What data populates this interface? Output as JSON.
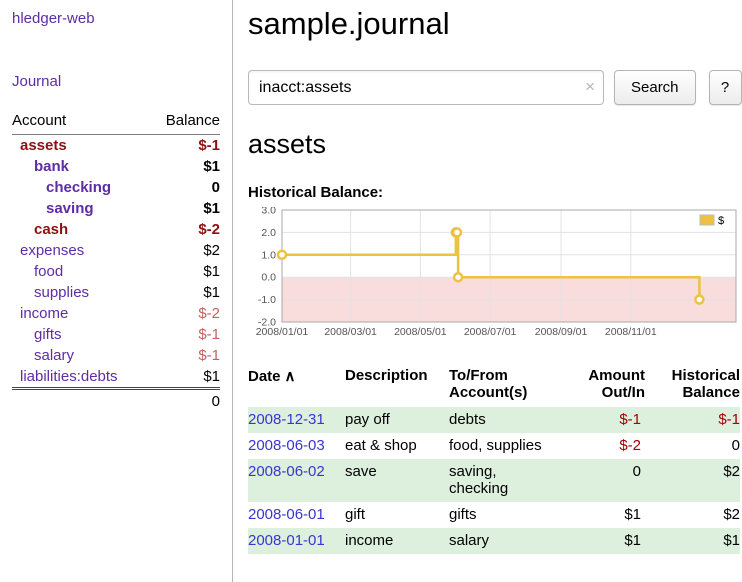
{
  "app": {
    "title": "hledger-web",
    "journal_link": "Journal"
  },
  "sidebar": {
    "header": {
      "account": "Account",
      "balance": "Balance"
    },
    "accounts": [
      {
        "name": "assets",
        "balance": "$-1",
        "indent": 0,
        "bold": true,
        "negative": true
      },
      {
        "name": "bank",
        "balance": "$1",
        "indent": 1,
        "bold": true,
        "negative": false
      },
      {
        "name": "checking",
        "balance": "0",
        "indent": 2,
        "bold": true,
        "negative": false
      },
      {
        "name": "saving",
        "balance": "$1",
        "indent": 2,
        "bold": true,
        "negative": false
      },
      {
        "name": "cash",
        "balance": "$-2",
        "indent": 1,
        "bold": true,
        "negative": true
      },
      {
        "name": "expenses",
        "balance": "$2",
        "indent": 0,
        "bold": false,
        "negative": false
      },
      {
        "name": "food",
        "balance": "$1",
        "indent": 1,
        "bold": false,
        "negative": false
      },
      {
        "name": "supplies",
        "balance": "$1",
        "indent": 1,
        "bold": false,
        "negative": false
      },
      {
        "name": "income",
        "balance": "$-2",
        "indent": 0,
        "bold": false,
        "negative": true
      },
      {
        "name": "gifts",
        "balance": "$-1",
        "indent": 1,
        "bold": false,
        "negative": true
      },
      {
        "name": "salary",
        "balance": "$-1",
        "indent": 1,
        "bold": false,
        "negative": true
      },
      {
        "name": "liabilities:debts",
        "balance": "$1",
        "indent": 0,
        "bold": false,
        "negative": false
      }
    ],
    "total": "0"
  },
  "main": {
    "title": "sample.journal",
    "search": {
      "value": "inacct:assets",
      "clear_icon": "×",
      "button_label": "Search",
      "help_label": "?"
    },
    "account_title": "assets",
    "register": {
      "headers": {
        "date": "Date",
        "sort_icon": "∧",
        "description": "Description",
        "accounts": "To/From Account(s)",
        "amount": "Amount Out/In",
        "balance": "Historical Balance"
      },
      "rows": [
        {
          "date": "2008-12-31",
          "description": "pay off",
          "accounts": "debts",
          "amount": "$-1",
          "amount_negative": true,
          "balance": "$-1",
          "balance_negative": true
        },
        {
          "date": "2008-06-03",
          "description": "eat & shop",
          "accounts": "food, supplies",
          "amount": "$-2",
          "amount_negative": true,
          "balance": "0",
          "balance_negative": false
        },
        {
          "date": "2008-06-02",
          "description": "save",
          "accounts": "saving, checking",
          "amount": "0",
          "amount_negative": false,
          "balance": "$2",
          "balance_negative": false
        },
        {
          "date": "2008-06-01",
          "description": "gift",
          "accounts": "gifts",
          "amount": "$1",
          "amount_negative": false,
          "balance": "$2",
          "balance_negative": false
        },
        {
          "date": "2008-01-01",
          "description": "income",
          "accounts": "salary",
          "amount": "$1",
          "amount_negative": false,
          "balance": "$1",
          "balance_negative": false
        }
      ]
    }
  },
  "chart_data": {
    "type": "line",
    "title": "Historical Balance:",
    "x_type": "date",
    "xlim": [
      "2008-01-01",
      "2009-02-01"
    ],
    "ylim": [
      -2,
      3
    ],
    "yticks": [
      3,
      2,
      1,
      0,
      -1,
      -2
    ],
    "xticks": [
      {
        "date": "2008-01-01",
        "label": "2008/01/01"
      },
      {
        "date": "2008-03-01",
        "label": "2008/03/01"
      },
      {
        "date": "2008-05-01",
        "label": "2008/05/01"
      },
      {
        "date": "2008-07-01",
        "label": "2008/07/01"
      },
      {
        "date": "2008-09-01",
        "label": "2008/09/01"
      },
      {
        "date": "2008-11-01",
        "label": "2008/11/01"
      }
    ],
    "legend_position": "top-right",
    "series": [
      {
        "name": "$",
        "color": "#edc240",
        "steps": true,
        "points": [
          [
            "2008-01-01",
            1
          ],
          [
            "2008-06-01",
            2
          ],
          [
            "2008-06-02",
            2
          ],
          [
            "2008-06-03",
            0
          ],
          [
            "2008-12-31",
            -1
          ]
        ]
      }
    ],
    "negative_region": {
      "from": -2,
      "to": 0,
      "color": "#f9dcdc"
    },
    "grid_color": "#e3e3e3",
    "border_color": "#aaaaaa",
    "tick_color": "#545454"
  },
  "colors": {
    "link_purple": "#5e2ca5",
    "date_link_blue": "#3a35d1",
    "negative_dark": "#8b1212",
    "negative_soft": "#c46262",
    "negative_red": "#a40000",
    "row_stripe_green": "#ddefdd",
    "chart_line_gold": "#edc240",
    "chart_negative_pink": "#f9dcdc"
  }
}
